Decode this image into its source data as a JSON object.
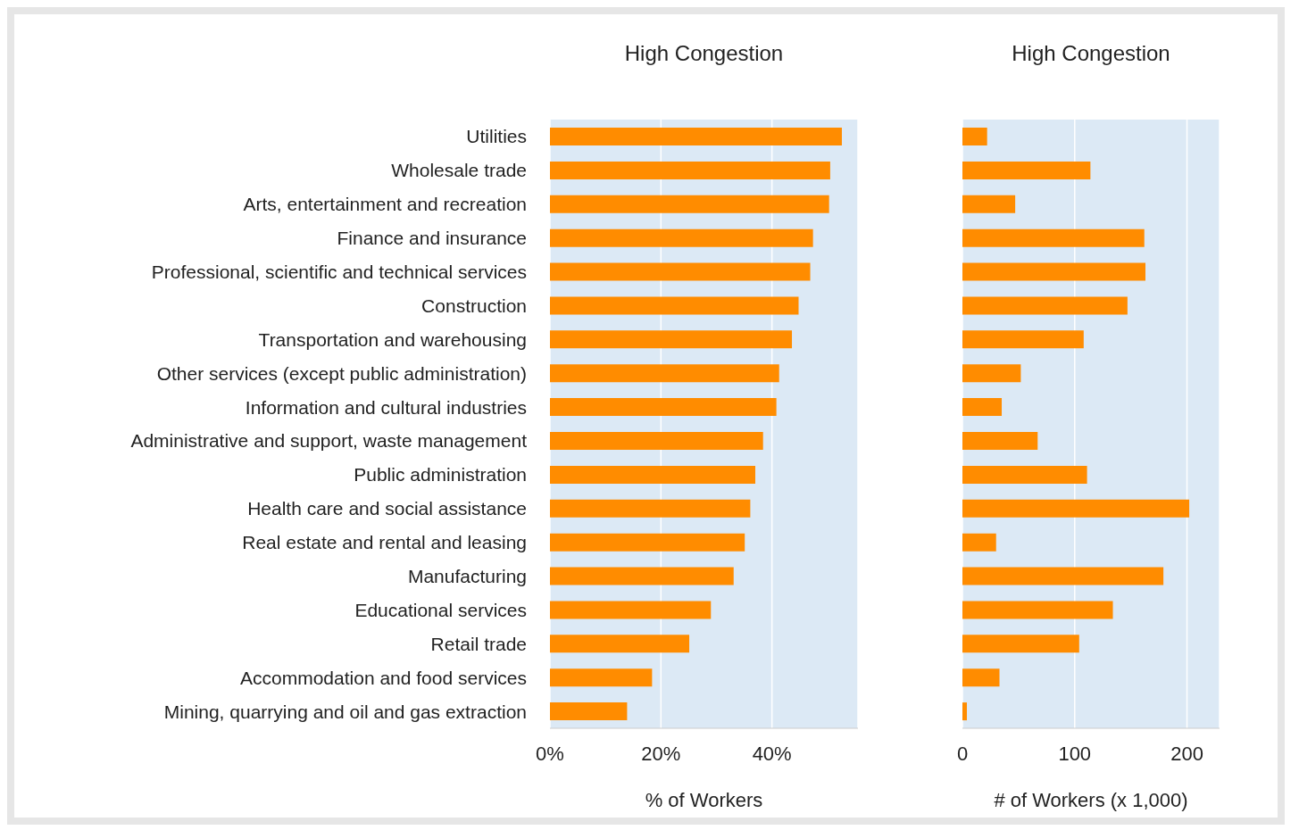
{
  "chart_data": [
    {
      "type": "bar",
      "orientation": "horizontal",
      "title": "High Congestion",
      "xlabel": "% of Workers",
      "categories": [
        "Utilities",
        "Wholesale trade",
        "Arts, entertainment and recreation",
        "Finance and insurance",
        "Professional, scientific and technical services",
        "Construction",
        "Transportation and warehousing",
        "Other services (except public administration)",
        "Information and cultural industries",
        "Administrative and support, waste management",
        "Public administration",
        "Health care and social assistance",
        "Real estate and rental and leasing",
        "Manufacturing",
        "Educational services",
        "Retail trade",
        "Accommodation and food services",
        "Mining, quarrying and oil and gas extraction"
      ],
      "values": [
        52.6,
        50.5,
        50.3,
        47.4,
        46.9,
        44.8,
        43.6,
        41.3,
        40.8,
        38.4,
        37.0,
        36.1,
        35.1,
        33.1,
        29.0,
        25.1,
        18.4,
        13.9
      ],
      "color": "#ff8c00",
      "xlim": [
        0,
        55.5
      ],
      "xticks": [
        {
          "value": 0,
          "label": "0%"
        },
        {
          "value": 20,
          "label": "20%"
        },
        {
          "value": 40,
          "label": "40%"
        }
      ],
      "grid": "x"
    },
    {
      "type": "bar",
      "orientation": "horizontal",
      "title": "High Congestion",
      "xlabel": "# of Workers (x 1,000)",
      "categories": [
        null,
        null,
        null,
        null,
        null,
        null,
        null,
        null,
        null,
        null,
        null,
        null,
        null,
        null,
        null,
        null,
        null,
        null
      ],
      "values": [
        22,
        114,
        47,
        162,
        163,
        147,
        108,
        52,
        35,
        67,
        111,
        202,
        30,
        179,
        134,
        104,
        33,
        4
      ],
      "color": "#ff8c00",
      "xlim": [
        0,
        229
      ],
      "xticks": [
        0,
        100,
        200
      ],
      "grid": "x",
      "tick_labels": "x"
    }
  ]
}
